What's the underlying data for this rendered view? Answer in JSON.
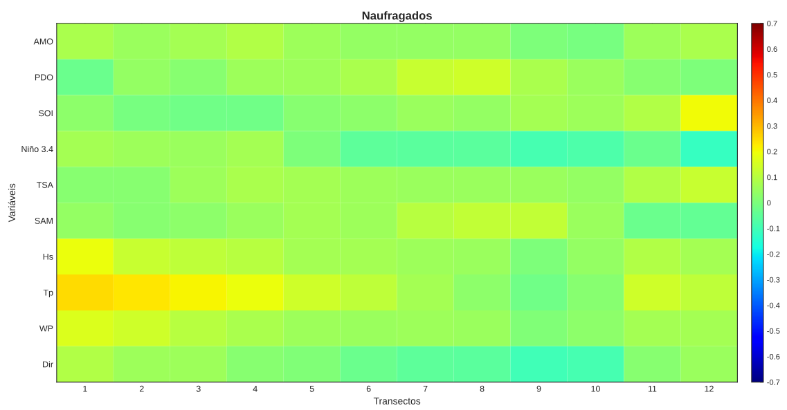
{
  "chart_data": {
    "type": "heatmap",
    "title": "Naufragados",
    "xlabel": "Transectos",
    "ylabel": "Variáveis",
    "categories": [
      "1",
      "2",
      "3",
      "4",
      "5",
      "6",
      "7",
      "8",
      "9",
      "10",
      "11",
      "12"
    ],
    "y_categories": [
      "AMO",
      "PDO",
      "SOI",
      "Niño 3.4",
      "TSA",
      "SAM",
      "Hs",
      "Tp",
      "WP",
      "Dir"
    ],
    "cells": [
      [
        0.08,
        0.05,
        0.07,
        0.09,
        0.06,
        0.04,
        0.04,
        0.04,
        0.0,
        -0.01,
        0.06,
        0.08
      ],
      [
        -0.03,
        0.04,
        0.02,
        0.06,
        0.06,
        0.08,
        0.13,
        0.14,
        0.08,
        0.05,
        0.02,
        0.0
      ],
      [
        0.03,
        -0.01,
        -0.02,
        -0.02,
        0.02,
        0.03,
        0.05,
        0.04,
        0.07,
        0.06,
        0.09,
        0.2
      ],
      [
        0.07,
        0.06,
        0.05,
        0.07,
        0.0,
        -0.05,
        -0.06,
        -0.06,
        -0.09,
        -0.08,
        -0.03,
        -0.12
      ],
      [
        0.02,
        0.02,
        0.06,
        0.08,
        0.07,
        0.06,
        0.05,
        0.05,
        0.05,
        0.04,
        0.09,
        0.13
      ],
      [
        0.04,
        0.02,
        0.03,
        0.05,
        0.07,
        0.06,
        0.1,
        0.12,
        0.12,
        0.05,
        -0.03,
        -0.04
      ],
      [
        0.19,
        0.13,
        0.11,
        0.1,
        0.07,
        0.07,
        0.06,
        0.05,
        0.0,
        0.04,
        0.09,
        0.07
      ],
      [
        0.25,
        0.23,
        0.21,
        0.19,
        0.14,
        0.11,
        0.07,
        0.03,
        -0.02,
        0.02,
        0.14,
        0.11
      ],
      [
        0.16,
        0.14,
        0.1,
        0.08,
        0.06,
        0.05,
        0.06,
        0.05,
        0.01,
        0.03,
        0.07,
        0.07
      ],
      [
        0.09,
        0.06,
        0.06,
        0.02,
        0.01,
        -0.03,
        -0.05,
        -0.06,
        -0.1,
        -0.09,
        0.02,
        0.05
      ]
    ],
    "clim": [
      -0.7,
      0.7
    ],
    "cticks": [
      -0.7,
      -0.6,
      -0.5,
      -0.4,
      -0.3,
      -0.2,
      -0.1,
      0,
      0.1,
      0.2,
      0.3,
      0.4,
      0.5,
      0.6,
      0.7
    ]
  }
}
